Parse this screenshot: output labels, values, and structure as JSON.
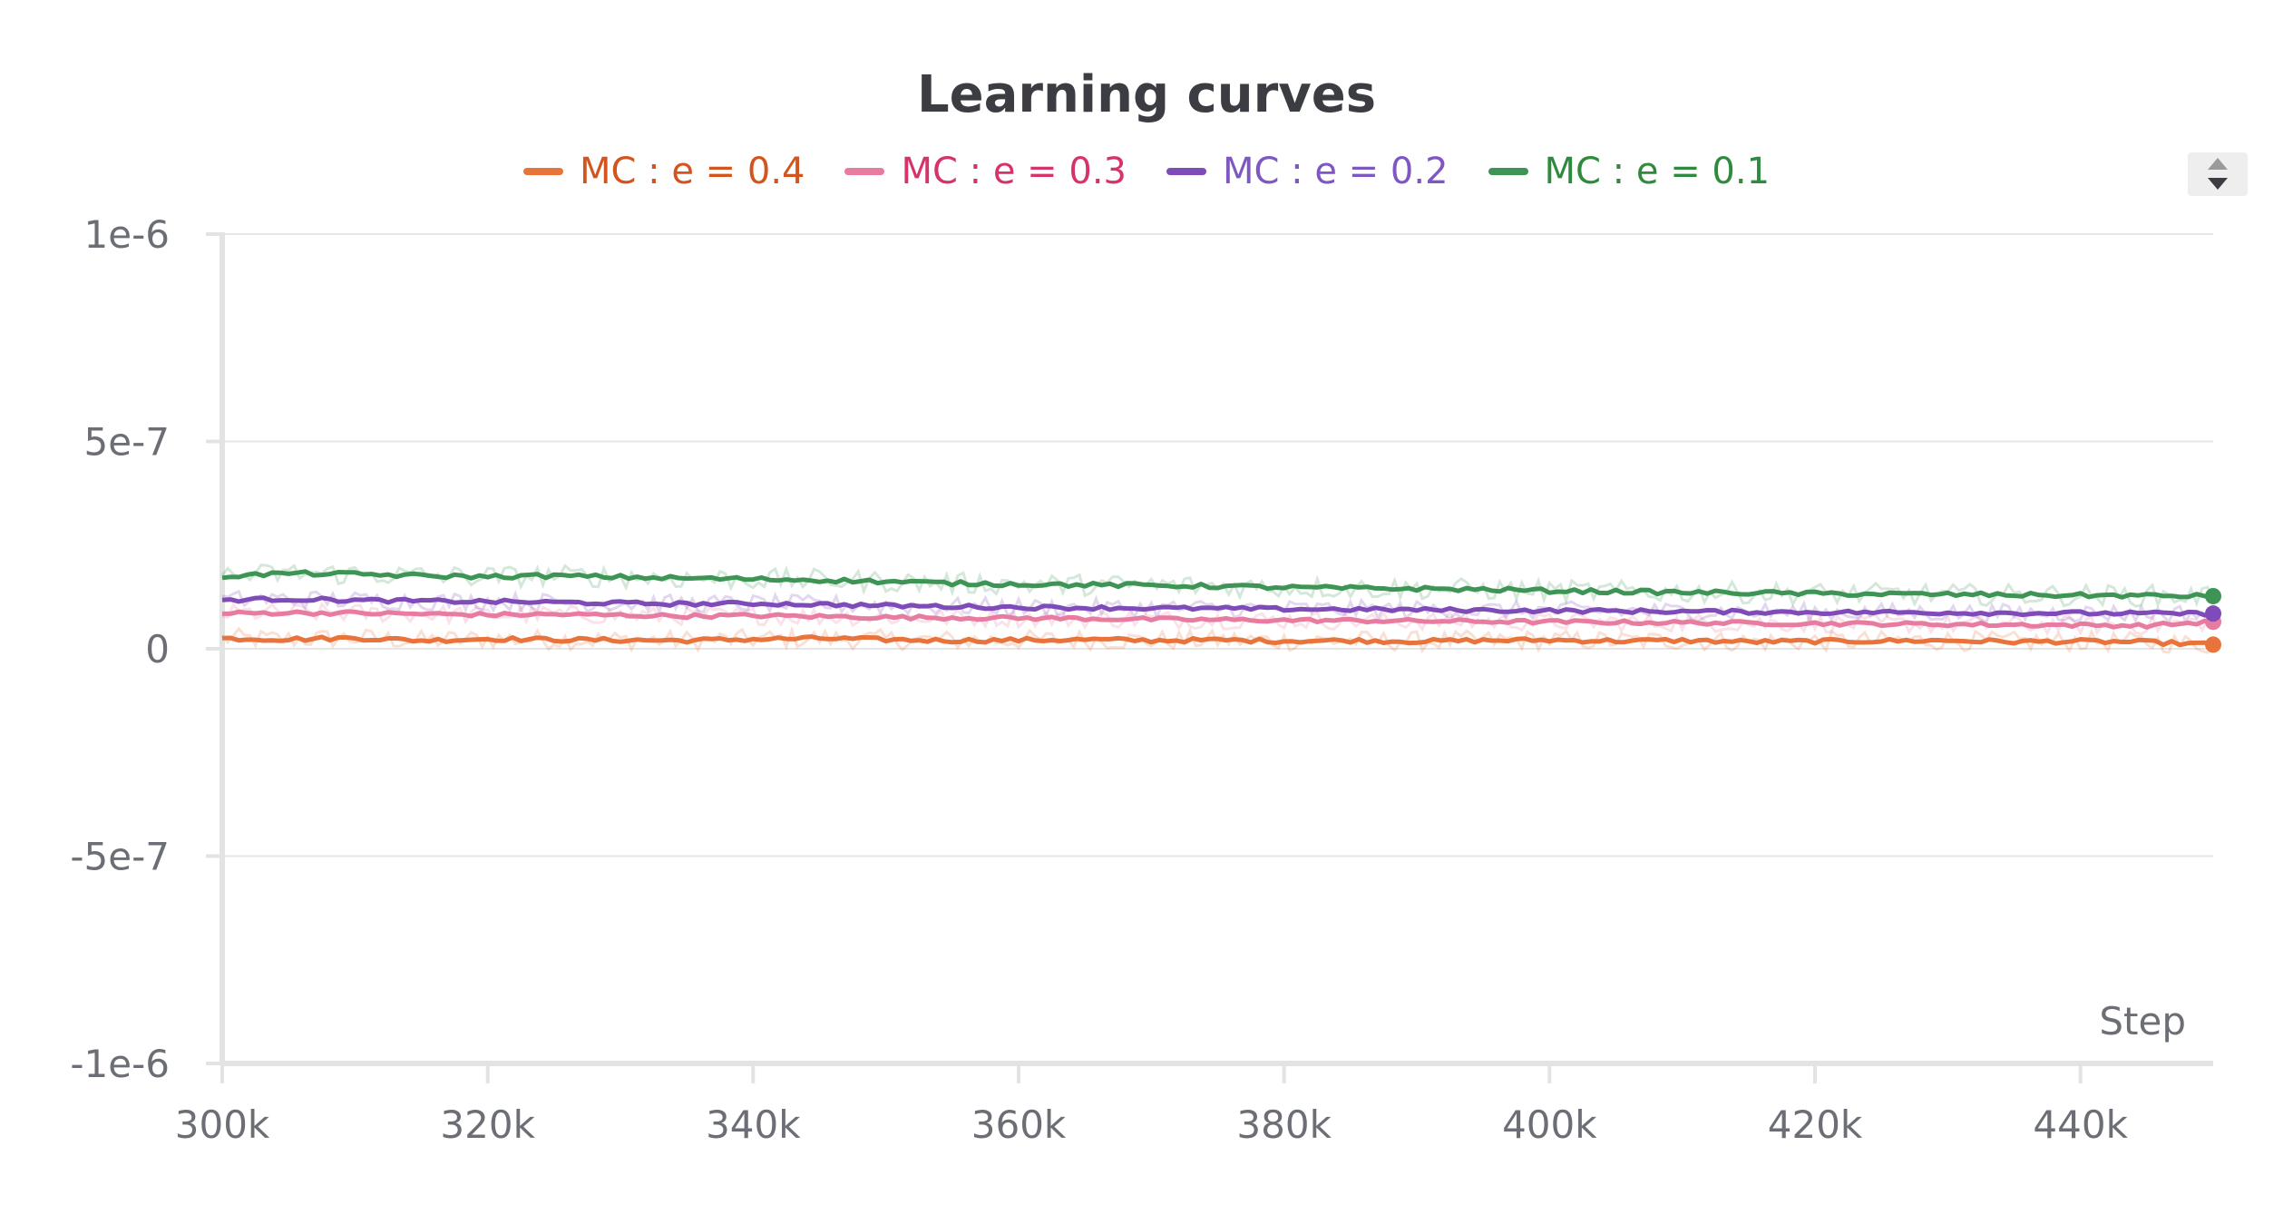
{
  "chart_data": {
    "type": "line",
    "title": "Learning curves",
    "xlabel": "Step",
    "ylabel": "",
    "xlim": [
      300000,
      450000
    ],
    "ylim": [
      -1e-06,
      1e-06
    ],
    "x_ticks": [
      {
        "value": 300000,
        "label": "300k"
      },
      {
        "value": 320000,
        "label": "320k"
      },
      {
        "value": 340000,
        "label": "340k"
      },
      {
        "value": 360000,
        "label": "360k"
      },
      {
        "value": 380000,
        "label": "380k"
      },
      {
        "value": 400000,
        "label": "400k"
      },
      {
        "value": 420000,
        "label": "420k"
      },
      {
        "value": 440000,
        "label": "440k"
      }
    ],
    "y_ticks": [
      {
        "value": 1e-06,
        "label": "1e-6"
      },
      {
        "value": 5e-07,
        "label": "5e-7"
      },
      {
        "value": 0,
        "label": "0"
      },
      {
        "value": -5e-07,
        "label": "-5e-7"
      },
      {
        "value": -1e-06,
        "label": "-1e-6"
      }
    ],
    "grid": true,
    "legend_position": "top-center",
    "x": [
      300000,
      305000,
      310000,
      315000,
      320000,
      325000,
      330000,
      335000,
      340000,
      345000,
      350000,
      355000,
      360000,
      365000,
      370000,
      375000,
      380000,
      385000,
      390000,
      395000,
      400000,
      405000,
      410000,
      415000,
      420000,
      425000,
      430000,
      435000,
      440000,
      445000,
      450000
    ],
    "series": [
      {
        "name": "MC : e = 0.4",
        "color": "#e8743b",
        "legend_text_color": "#d2551f",
        "values": [
          2.5e-08,
          2.3e-08,
          2.6e-08,
          2e-08,
          2.4e-08,
          2.2e-08,
          2.1e-08,
          2e-08,
          2.3e-08,
          2.5e-08,
          2.2e-08,
          2e-08,
          2.1e-08,
          2.2e-08,
          2e-08,
          2.1e-08,
          1.9e-08,
          2e-08,
          1.8e-08,
          2e-08,
          2.1e-08,
          1.9e-08,
          2e-08,
          1.7e-08,
          1.8e-08,
          1.9e-08,
          2e-08,
          1.7e-08,
          1.8e-08,
          1.6e-08,
          1e-08
        ]
      },
      {
        "name": "MC : e = 0.3",
        "color": "#e87ba0",
        "legend_text_color": "#d6336c",
        "values": [
          8.5e-08,
          8.7e-08,
          8.6e-08,
          8.4e-08,
          8.2e-08,
          8.3e-08,
          8.1e-08,
          7.9e-08,
          8e-08,
          7.8e-08,
          7.6e-08,
          7.5e-08,
          7.4e-08,
          7.3e-08,
          7.1e-08,
          7e-08,
          6.9e-08,
          6.8e-08,
          6.7e-08,
          6.6e-08,
          6.5e-08,
          6.4e-08,
          6.3e-08,
          6.2e-08,
          6.1e-08,
          6e-08,
          5.9e-08,
          5.8e-08,
          5.7e-08,
          5.6e-08,
          6.5e-08
        ]
      },
      {
        "name": "MC : e = 0.2",
        "color": "#7e4bb8",
        "legend_text_color": "#7e57c2",
        "values": [
          1.18e-07,
          1.2e-07,
          1.17e-07,
          1.15e-07,
          1.14e-07,
          1.12e-07,
          1.1e-07,
          1.08e-07,
          1.09e-07,
          1.07e-07,
          1.04e-07,
          1.02e-07,
          1e-07,
          9.9e-08,
          9.8e-08,
          9.7e-08,
          9.6e-08,
          9.5e-08,
          9.4e-08,
          9.3e-08,
          9.2e-08,
          9.1e-08,
          9e-08,
          8.9e-08,
          8.8e-08,
          8.8e-08,
          8.7e-08,
          8.6e-08,
          8.6e-08,
          8.5e-08,
          8.5e-08
        ]
      },
      {
        "name": "MC : e = 0.1",
        "color": "#3d9455",
        "legend_text_color": "#2e8b3d",
        "values": [
          1.75e-07,
          1.82e-07,
          1.8e-07,
          1.76e-07,
          1.74e-07,
          1.76e-07,
          1.73e-07,
          1.7e-07,
          1.68e-07,
          1.66e-07,
          1.62e-07,
          1.58e-07,
          1.56e-07,
          1.54e-07,
          1.53e-07,
          1.51e-07,
          1.48e-07,
          1.46e-07,
          1.45e-07,
          1.43e-07,
          1.4e-07,
          1.38e-07,
          1.36e-07,
          1.35e-07,
          1.33e-07,
          1.32e-07,
          1.31e-07,
          1.3e-07,
          1.29e-07,
          1.28e-07,
          1.27e-07
        ]
      }
    ]
  }
}
